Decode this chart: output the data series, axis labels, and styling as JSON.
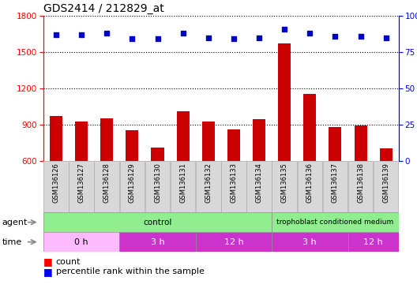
{
  "title": "GDS2414 / 212829_at",
  "samples": [
    "GSM136126",
    "GSM136127",
    "GSM136128",
    "GSM136129",
    "GSM136130",
    "GSM136131",
    "GSM136132",
    "GSM136133",
    "GSM136134",
    "GSM136135",
    "GSM136136",
    "GSM136137",
    "GSM136138",
    "GSM136139"
  ],
  "counts": [
    975,
    930,
    955,
    855,
    710,
    1010,
    930,
    860,
    945,
    1570,
    1155,
    880,
    895,
    705
  ],
  "percentile_ranks": [
    87,
    87,
    88,
    84,
    84,
    88,
    85,
    84,
    85,
    91,
    88,
    86,
    86,
    85
  ],
  "ylim_left": [
    600,
    1800
  ],
  "ylim_right": [
    0,
    100
  ],
  "yticks_left": [
    600,
    900,
    1200,
    1500,
    1800
  ],
  "yticks_right": [
    0,
    25,
    50,
    75,
    100
  ],
  "bar_color": "#cc0000",
  "dot_color": "#0000cc",
  "time_groups": [
    {
      "label": "0 h",
      "start": 0,
      "end": 3,
      "color": "#ffbbff"
    },
    {
      "label": "3 h",
      "start": 3,
      "end": 6,
      "color": "#cc33cc"
    },
    {
      "label": "12 h",
      "start": 6,
      "end": 9,
      "color": "#cc33cc"
    },
    {
      "label": "3 h",
      "start": 9,
      "end": 12,
      "color": "#cc33cc"
    },
    {
      "label": "12 h",
      "start": 12,
      "end": 14,
      "color": "#cc33cc"
    }
  ],
  "agent_label": "agent",
  "time_label": "time",
  "legend_count_label": "count",
  "legend_pct_label": "percentile rank within the sample",
  "grid_color": "#555555",
  "bar_bg_color": "#e8e8e8",
  "agent_color": "#90ee90",
  "plot_bg": "#ffffff"
}
